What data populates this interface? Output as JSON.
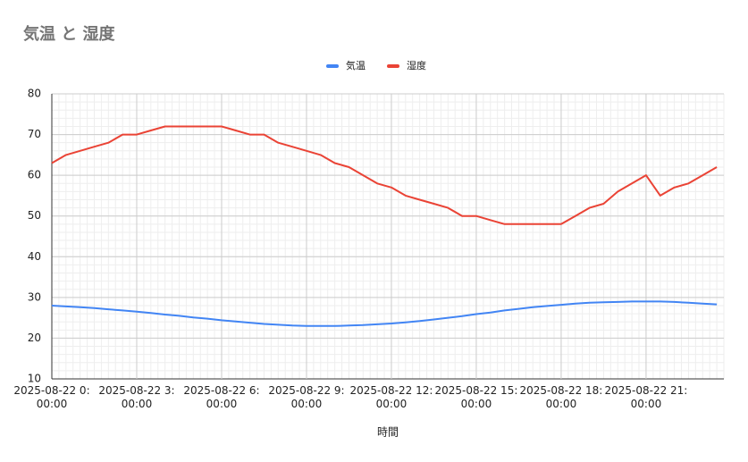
{
  "chart_data": {
    "type": "line",
    "title": "気温 と 湿度",
    "x_label": "時間",
    "x": [
      "2025-08-22 0:00:00",
      "2025-08-22 0:30:00",
      "2025-08-22 1:00:00",
      "2025-08-22 1:30:00",
      "2025-08-22 2:00:00",
      "2025-08-22 2:30:00",
      "2025-08-22 3:00:00",
      "2025-08-22 3:30:00",
      "2025-08-22 4:00:00",
      "2025-08-22 4:30:00",
      "2025-08-22 5:00:00",
      "2025-08-22 5:30:00",
      "2025-08-22 6:00:00",
      "2025-08-22 6:30:00",
      "2025-08-22 7:00:00",
      "2025-08-22 7:30:00",
      "2025-08-22 8:00:00",
      "2025-08-22 8:30:00",
      "2025-08-22 9:00:00",
      "2025-08-22 9:30:00",
      "2025-08-22 10:00:00",
      "2025-08-22 10:30:00",
      "2025-08-22 11:00:00",
      "2025-08-22 11:30:00",
      "2025-08-22 12:00:00",
      "2025-08-22 12:30:00",
      "2025-08-22 13:00:00",
      "2025-08-22 13:30:00",
      "2025-08-22 14:00:00",
      "2025-08-22 14:30:00",
      "2025-08-22 15:00:00",
      "2025-08-22 15:30:00",
      "2025-08-22 16:00:00",
      "2025-08-22 16:30:00",
      "2025-08-22 17:00:00",
      "2025-08-22 17:30:00",
      "2025-08-22 18:00:00",
      "2025-08-22 18:30:00",
      "2025-08-22 19:00:00",
      "2025-08-22 19:30:00",
      "2025-08-22 20:00:00",
      "2025-08-22 20:30:00",
      "2025-08-22 21:00:00",
      "2025-08-22 21:30:00",
      "2025-08-22 22:00:00",
      "2025-08-22 22:30:00",
      "2025-08-22 23:00:00",
      "2025-08-22 23:30:00"
    ],
    "series": [
      {
        "name": "気温",
        "color": "#4285f4",
        "values": [
          28.0,
          27.8,
          27.6,
          27.4,
          27.1,
          26.8,
          26.5,
          26.2,
          25.8,
          25.5,
          25.1,
          24.8,
          24.4,
          24.1,
          23.8,
          23.5,
          23.3,
          23.1,
          23.0,
          23.0,
          23.0,
          23.1,
          23.2,
          23.4,
          23.6,
          23.9,
          24.2,
          24.6,
          25.0,
          25.4,
          25.9,
          26.3,
          26.8,
          27.2,
          27.6,
          27.9,
          28.2,
          28.5,
          28.7,
          28.8,
          28.9,
          29.0,
          29.0,
          29.0,
          28.9,
          28.7,
          28.5,
          28.3
        ]
      },
      {
        "name": "湿度",
        "color": "#ea4335",
        "values": [
          63,
          65,
          66,
          67,
          68,
          70,
          70,
          71,
          72,
          72,
          72,
          72,
          72,
          71,
          70,
          70,
          68,
          67,
          66,
          65,
          63,
          62,
          60,
          58,
          57,
          55,
          54,
          53,
          52,
          50,
          50,
          49,
          48,
          48,
          48,
          48,
          48,
          50,
          52,
          53,
          56,
          58,
          60,
          55,
          57,
          58,
          60,
          62
        ]
      }
    ],
    "xlim": [
      "2025-08-22 0:00:00",
      "2025-08-22 23:45:00"
    ],
    "xticks": [
      "2025-08-22 0:00:00",
      "2025-08-22 3:00:00",
      "2025-08-22 6:00:00",
      "2025-08-22 9:00:00",
      "2025-08-22 12:00:00",
      "2025-08-22 15:00:00",
      "2025-08-22 18:00:00",
      "2025-08-22 21:00:00"
    ],
    "ylim": [
      10,
      80
    ],
    "yticks": [
      10,
      20,
      30,
      40,
      50,
      60,
      70,
      80
    ],
    "grid": true,
    "legend": "top"
  }
}
